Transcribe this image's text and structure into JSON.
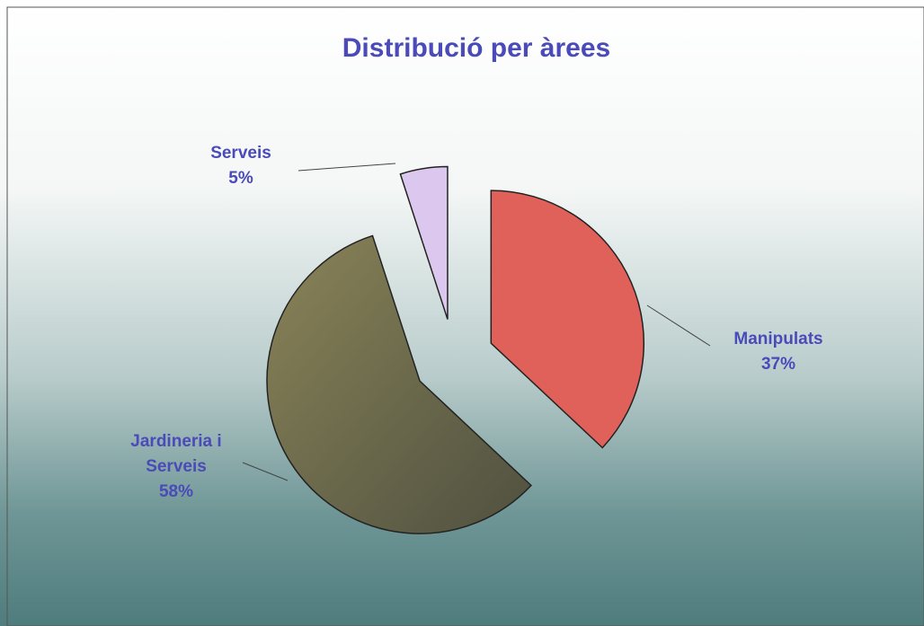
{
  "chart_data": {
    "type": "pie",
    "title": "Distribució per àrees",
    "categories": [
      "Manipulats",
      "Jardineria i Serveis",
      "Serveis"
    ],
    "values": [
      37,
      58,
      5
    ],
    "value_labels": [
      "37%",
      "58%",
      "5%"
    ],
    "colors": [
      "#e0605a",
      "#7d7650",
      "#dcc8ee"
    ],
    "exploded": true
  }
}
